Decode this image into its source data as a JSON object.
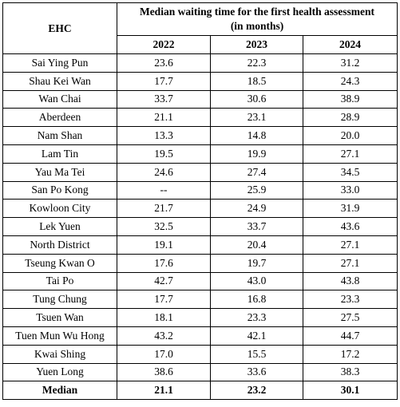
{
  "header": {
    "ehc_label": "EHC",
    "title_line1": "Median waiting time for the first health assessment",
    "title_line2": "(in months)",
    "years": [
      "2022",
      "2023",
      "2024"
    ]
  },
  "rows": [
    {
      "name": "Sai Ying Pun",
      "v2022": "23.6",
      "v2023": "22.3",
      "v2024": "31.2"
    },
    {
      "name": "Shau Kei Wan",
      "v2022": "17.7",
      "v2023": "18.5",
      "v2024": "24.3"
    },
    {
      "name": "Wan Chai",
      "v2022": "33.7",
      "v2023": "30.6",
      "v2024": "38.9"
    },
    {
      "name": "Aberdeen",
      "v2022": "21.1",
      "v2023": "23.1",
      "v2024": "28.9"
    },
    {
      "name": "Nam Shan",
      "v2022": "13.3",
      "v2023": "14.8",
      "v2024": "20.0"
    },
    {
      "name": "Lam Tin",
      "v2022": "19.5",
      "v2023": "19.9",
      "v2024": "27.1"
    },
    {
      "name": "Yau Ma Tei",
      "v2022": "24.6",
      "v2023": "27.4",
      "v2024": "34.5"
    },
    {
      "name": "San Po Kong",
      "v2022": "--",
      "v2023": "25.9",
      "v2024": "33.0"
    },
    {
      "name": "Kowloon City",
      "v2022": "21.7",
      "v2023": "24.9",
      "v2024": "31.9"
    },
    {
      "name": "Lek Yuen",
      "v2022": "32.5",
      "v2023": "33.7",
      "v2024": "43.6"
    },
    {
      "name": "North District",
      "v2022": "19.1",
      "v2023": "20.4",
      "v2024": "27.1"
    },
    {
      "name": "Tseung Kwan O",
      "v2022": "17.6",
      "v2023": "19.7",
      "v2024": "27.1"
    },
    {
      "name": "Tai Po",
      "v2022": "42.7",
      "v2023": "43.0",
      "v2024": "43.8"
    },
    {
      "name": "Tung Chung",
      "v2022": "17.7",
      "v2023": "16.8",
      "v2024": "23.3"
    },
    {
      "name": "Tsuen Wan",
      "v2022": "18.1",
      "v2023": "23.3",
      "v2024": "27.5"
    },
    {
      "name": "Tuen Mun Wu Hong",
      "v2022": "43.2",
      "v2023": "42.1",
      "v2024": "44.7"
    },
    {
      "name": "Kwai Shing",
      "v2022": "17.0",
      "v2023": "15.5",
      "v2024": "17.2"
    },
    {
      "name": "Yuen Long",
      "v2022": "38.6",
      "v2023": "33.6",
      "v2024": "38.3"
    }
  ],
  "median": {
    "name": "Median",
    "v2022": "21.1",
    "v2023": "23.2",
    "v2024": "30.1"
  }
}
